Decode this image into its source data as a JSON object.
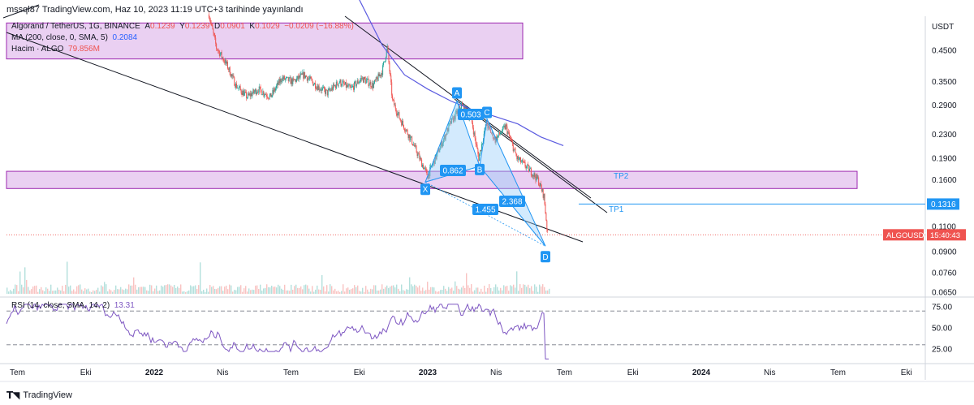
{
  "header": {
    "published": "mssql87 TradingView.com, Haz 10, 2023 11:19 UTC+3 tarihinde yayınlandı"
  },
  "legend": {
    "symbol": "Algorand / TetherUS, 1G, BINANCE",
    "ohlc_a_label": "A",
    "ohlc_a": "0.1239",
    "ohlc_y_label": "Y",
    "ohlc_y": "0.1239",
    "ohlc_d_label": "D",
    "ohlc_d": "0.0901",
    "ohlc_k_label": "K",
    "ohlc_k": "0.1029",
    "change": "−0.0209 (−16.88%)",
    "ma_label": "MA (200, close, 0, SMA, 5)",
    "ma_value": "0.2084",
    "vol_label": "Hacim · ALGO",
    "vol_value": "79.856M",
    "rsi_label": "RSI (14, close, SMA, 14, 2)",
    "rsi_value": "13.31"
  },
  "colors": {
    "up": "#26a69a",
    "down": "#ef5350",
    "ma": "#5b5be0",
    "zone_fill": "#e6c8f0",
    "zone_border": "#9c27b0",
    "pattern": "#2196f3",
    "rsi": "#7e57c2",
    "line": "#131722"
  },
  "chart_data": [
    {
      "type": "candlestick",
      "symbol": "ALGOUSDT",
      "y_scale": "log",
      "currency_label": "USDT",
      "price_ticks": [
        0.45,
        0.35,
        0.29,
        0.23,
        0.19,
        0.16,
        0.11,
        0.09,
        0.076,
        0.065
      ],
      "price_tick_labels": [
        "0.4500",
        "0.3500",
        "0.2900",
        "0.2300",
        "0.1900",
        "0.1600",
        "0.1100",
        "0.0900",
        "0.0760",
        "0.0650"
      ],
      "x_ticks": [
        "Tem",
        "Eki",
        "2022",
        "Nis",
        "Tem",
        "Eki",
        "2023",
        "Nis",
        "Tem",
        "Eki",
        "2024",
        "Nis",
        "Tem",
        "Eki"
      ],
      "price_path": [
        [
          "2022-03-15",
          0.6
        ],
        [
          "2022-03-25",
          0.46
        ],
        [
          "2022-04-08",
          0.4
        ],
        [
          "2022-04-20",
          0.34
        ],
        [
          "2022-05-05",
          0.31
        ],
        [
          "2022-05-20",
          0.33
        ],
        [
          "2022-06-05",
          0.31
        ],
        [
          "2022-06-20",
          0.36
        ],
        [
          "2022-07-05",
          0.35
        ],
        [
          "2022-07-20",
          0.37
        ],
        [
          "2022-08-05",
          0.34
        ],
        [
          "2022-08-20",
          0.32
        ],
        [
          "2022-09-05",
          0.35
        ],
        [
          "2022-09-20",
          0.33
        ],
        [
          "2022-10-05",
          0.36
        ],
        [
          "2022-10-20",
          0.34
        ],
        [
          "2022-11-01",
          0.38
        ],
        [
          "2022-11-08",
          0.46
        ],
        [
          "2022-11-15",
          0.3
        ],
        [
          "2022-11-25",
          0.26
        ],
        [
          "2022-12-10",
          0.22
        ],
        [
          "2022-12-25",
          0.18
        ],
        [
          "2023-01-01",
          0.165
        ],
        [
          "2023-01-15",
          0.2
        ],
        [
          "2023-01-31",
          0.25
        ],
        [
          "2023-02-15",
          0.29
        ],
        [
          "2023-02-28",
          0.26
        ],
        [
          "2023-03-10",
          0.19
        ],
        [
          "2023-03-20",
          0.25
        ],
        [
          "2023-04-01",
          0.22
        ],
        [
          "2023-04-15",
          0.245
        ],
        [
          "2023-04-30",
          0.19
        ],
        [
          "2023-05-15",
          0.175
        ],
        [
          "2023-05-28",
          0.16
        ],
        [
          "2023-06-05",
          0.14
        ],
        [
          "2023-06-10",
          0.103
        ]
      ],
      "ma_200": [
        [
          "2022-10-01",
          0.68
        ],
        [
          "2022-11-01",
          0.47
        ],
        [
          "2022-12-01",
          0.37
        ],
        [
          "2023-01-01",
          0.33
        ],
        [
          "2023-02-01",
          0.3
        ],
        [
          "2023-03-01",
          0.28
        ],
        [
          "2023-04-01",
          0.265
        ],
        [
          "2023-05-01",
          0.25
        ],
        [
          "2023-06-01",
          0.225
        ],
        [
          "2023-07-01",
          0.21
        ]
      ],
      "current_price": "0.1029",
      "current_label": "ALGOUSDT",
      "countdown": "15:40:43",
      "harmonic_pattern": {
        "points": [
          {
            "label": "X",
            "price": 0.157
          },
          {
            "label": "A",
            "price": 0.3
          },
          {
            "label": "B",
            "price": 0.178
          },
          {
            "label": "C",
            "price": 0.26
          },
          {
            "label": "D",
            "price": 0.094
          }
        ],
        "ratios": [
          "0.503",
          "0.862",
          "2.368",
          "1.455"
        ]
      },
      "targets": [
        {
          "label": "TP1",
          "price": "0.1316"
        },
        {
          "label": "TP2",
          "price": "0.1600"
        }
      ],
      "zones": [
        {
          "from": 0.42,
          "to": 0.56
        },
        {
          "from": 0.149,
          "to": 0.171
        }
      ]
    },
    {
      "type": "line",
      "name": "RSI (14, close, SMA, 14, 2)",
      "y_ticks": [
        25.0,
        50.0,
        75.0
      ],
      "y_tick_labels": [
        "25.00",
        "50.00",
        "75.00"
      ],
      "bands": [
        70,
        30
      ],
      "last_value": 13.31
    }
  ],
  "footer": {
    "brand": "TradingView"
  }
}
